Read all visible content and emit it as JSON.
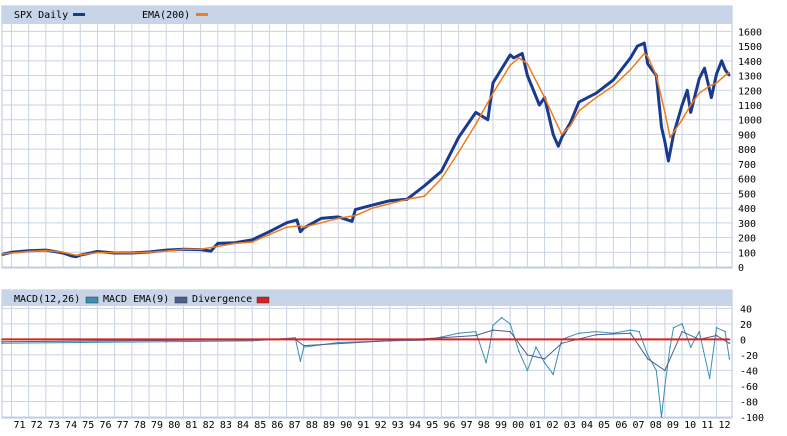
{
  "chart_data": [
    {
      "type": "line",
      "x_unit": "year",
      "xlim": [
        1970.45,
        2012.9
      ],
      "ylim": [
        0,
        1650
      ],
      "yticks": [
        0,
        100,
        200,
        300,
        400,
        500,
        600,
        700,
        800,
        900,
        1000,
        1100,
        1200,
        1300,
        1400,
        1500,
        1600
      ],
      "grid": true,
      "legend_placement": "top-left",
      "series": [
        {
          "name": "SPX Daily",
          "color": "#1a3a8e",
          "x": [
            1970.45,
            1971,
            1972,
            1973,
            1973.5,
            1974,
            1974.5,
            1974.75,
            1975,
            1976,
            1977,
            1978,
            1979,
            1980,
            1981,
            1982,
            1982.6,
            1983,
            1984,
            1985,
            1986,
            1987,
            1987.6,
            1987.8,
            1988,
            1989,
            1990,
            1990.8,
            1991,
            1992,
            1993,
            1994,
            1995,
            1996,
            1997,
            1998,
            1998.7,
            1999,
            2000,
            2000.2,
            2000.7,
            2001,
            2001.7,
            2002,
            2002.5,
            2002.8,
            2003,
            2003.5,
            2004,
            2005,
            2006,
            2007,
            2007.4,
            2007.8,
            2008,
            2008.5,
            2008.8,
            2009,
            2009.2,
            2009.5,
            2010,
            2010.3,
            2010.5,
            2011,
            2011.3,
            2011.7,
            2012,
            2012.3,
            2012.5,
            2012.75
          ],
          "values": [
            85,
            100,
            110,
            115,
            105,
            95,
            75,
            70,
            80,
            105,
            95,
            95,
            102,
            115,
            120,
            118,
            108,
            160,
            165,
            185,
            240,
            300,
            320,
            240,
            265,
            330,
            340,
            310,
            390,
            420,
            450,
            460,
            550,
            650,
            880,
            1050,
            1000,
            1250,
            1440,
            1420,
            1450,
            1300,
            1100,
            1150,
            900,
            820,
            880,
            980,
            1120,
            1180,
            1270,
            1420,
            1500,
            1520,
            1380,
            1300,
            950,
            850,
            720,
            900,
            1100,
            1200,
            1050,
            1280,
            1350,
            1150,
            1310,
            1400,
            1340,
            1300
          ]
        },
        {
          "name": "EMA(200)",
          "color": "#f07d1a",
          "x": [
            1970.45,
            1971,
            1972,
            1973,
            1974,
            1974.75,
            1975,
            1976,
            1977,
            1978,
            1979,
            1980,
            1981,
            1982,
            1983,
            1984,
            1985,
            1986,
            1987,
            1987.8,
            1988,
            1989,
            1990,
            1991,
            1992,
            1993,
            1994,
            1995,
            1996,
            1997,
            1998,
            1999,
            2000,
            2000.5,
            2001,
            2002,
            2002.8,
            2003,
            2003.5,
            2004,
            2005,
            2006,
            2007,
            2007.8,
            2008,
            2008.5,
            2009,
            2009.3,
            2010,
            2010.5,
            2011,
            2011.6,
            2012,
            2012.5,
            2012.75
          ],
          "values": [
            88,
            95,
            105,
            112,
            100,
            80,
            82,
            98,
            98,
            96,
            100,
            108,
            120,
            120,
            140,
            160,
            170,
            220,
            270,
            280,
            270,
            300,
            330,
            350,
            400,
            430,
            460,
            480,
            600,
            780,
            970,
            1180,
            1370,
            1420,
            1380,
            1150,
            950,
            900,
            960,
            1060,
            1150,
            1230,
            1340,
            1450,
            1430,
            1300,
            1050,
            880,
            1000,
            1100,
            1180,
            1230,
            1250,
            1300,
            1320
          ]
        }
      ]
    },
    {
      "type": "line",
      "x_unit": "year",
      "xlim": [
        1970.45,
        2012.9
      ],
      "ylim": [
        -100,
        43
      ],
      "yticks": [
        40,
        20,
        0,
        -20,
        -40,
        -60,
        -80,
        -100
      ],
      "grid": true,
      "legend_placement": "top-left",
      "series": [
        {
          "name": "MACD(12,26)",
          "color": "#3b8fb4",
          "x": [
            1970.45,
            1975,
            1980,
            1985,
            1987.5,
            1987.8,
            1988,
            1990,
            1993,
            1995,
            1996,
            1997,
            1998,
            1998.6,
            1998.8,
            1999,
            1999.5,
            2000,
            2000.5,
            2001,
            2001.5,
            2002,
            2002.5,
            2003,
            2004,
            2005,
            2006,
            2007,
            2007.5,
            2008,
            2008.5,
            2008.8,
            2009,
            2009.3,
            2009.5,
            2010,
            2010.5,
            2011,
            2011.6,
            2012,
            2012.5,
            2012.75
          ],
          "values": [
            -5,
            -4,
            -3,
            -2,
            2,
            -28,
            -10,
            -4,
            -2,
            -1,
            3,
            8,
            10,
            -30,
            -10,
            18,
            28,
            20,
            -15,
            -40,
            -10,
            -30,
            -45,
            0,
            8,
            10,
            8,
            12,
            10,
            -20,
            -40,
            -100,
            -60,
            -10,
            15,
            20,
            -10,
            10,
            -50,
            15,
            10,
            -25
          ]
        },
        {
          "name": "MACD EMA(9)",
          "color": "#4b5f8f",
          "x": [
            1970.45,
            1987.5,
            1988,
            1996,
            1998,
            1999,
            2000,
            2001,
            2002,
            2003,
            2005,
            2007,
            2008,
            2009,
            2010,
            2011,
            2012,
            2012.75
          ],
          "values": [
            -3,
            0,
            -8,
            2,
            5,
            12,
            10,
            -20,
            -25,
            -5,
            6,
            8,
            -25,
            -40,
            10,
            0,
            5,
            -5
          ]
        },
        {
          "name": "Divergence",
          "color": "#d82020",
          "x": [
            1970.45,
            1996,
            1998,
            2000,
            2002,
            2004,
            2006,
            2008,
            2010,
            2012,
            2012.75
          ],
          "values": [
            0,
            0,
            0,
            0,
            0,
            0,
            0,
            0,
            0,
            0,
            0
          ]
        }
      ]
    }
  ],
  "x_tick_labels": [
    "71",
    "72",
    "73",
    "74",
    "75",
    "76",
    "77",
    "78",
    "79",
    "80",
    "81",
    "82",
    "83",
    "84",
    "85",
    "86",
    "87",
    "88",
    "89",
    "90",
    "91",
    "92",
    "93",
    "94",
    "95",
    "96",
    "97",
    "98",
    "99",
    "00",
    "01",
    "02",
    "03",
    "04",
    "05",
    "06",
    "07",
    "08",
    "09",
    "10",
    "11",
    "12"
  ]
}
